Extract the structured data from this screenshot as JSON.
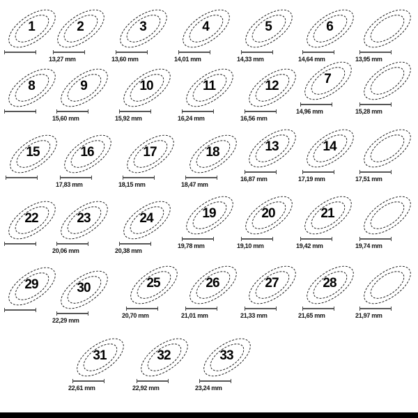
{
  "items": [
    {
      "label": "1",
      "length": ""
    },
    {
      "label": "2",
      "length": "13,27 mm"
    },
    {
      "label": "3",
      "length": "13,60 mm"
    },
    {
      "label": "4",
      "length": "14,01 mm"
    },
    {
      "label": "5",
      "length": "14,33 mm"
    },
    {
      "label": "6",
      "length": "14,64 mm"
    },
    {
      "label": "",
      "length": "13,95 mm"
    },
    {
      "label": "8",
      "length": ""
    },
    {
      "label": "9",
      "length": "15,60 mm"
    },
    {
      "label": "10",
      "length": "15,92 mm"
    },
    {
      "label": "11",
      "length": "16,24 mm"
    },
    {
      "label": "12",
      "length": "16,56 mm"
    },
    {
      "label": "7",
      "length": "14,96 mm"
    },
    {
      "label": "",
      "length": "15,28 mm"
    },
    {
      "label": "15",
      "length": ""
    },
    {
      "label": "16",
      "length": "17,83 mm"
    },
    {
      "label": "17",
      "length": "18,15 mm"
    },
    {
      "label": "18",
      "length": "18,47 mm"
    },
    {
      "label": "13",
      "length": "16,87 mm"
    },
    {
      "label": "14",
      "length": "17,19 mm"
    },
    {
      "label": "",
      "length": "17,51 mm"
    },
    {
      "label": "22",
      "length": ""
    },
    {
      "label": "23",
      "length": "20,06 mm"
    },
    {
      "label": "24",
      "length": "20,38 mm"
    },
    {
      "label": "19",
      "length": "19,78 mm"
    },
    {
      "label": "20",
      "length": "19,10 mm"
    },
    {
      "label": "21",
      "length": "19,42 mm"
    },
    {
      "label": "",
      "length": "19,74 mm"
    },
    {
      "label": "29",
      "length": ""
    },
    {
      "label": "30",
      "length": "22,29 mm"
    },
    {
      "label": "25",
      "length": "20,70 mm"
    },
    {
      "label": "26",
      "length": "21,01 mm"
    },
    {
      "label": "27",
      "length": "21,33 mm"
    },
    {
      "label": "28",
      "length": "21,65 mm"
    },
    {
      "label": "",
      "length": "21,97 mm"
    },
    {
      "label": "31",
      "length": "22,61 mm"
    },
    {
      "label": "32",
      "length": "22,92 mm"
    },
    {
      "label": "33",
      "length": "23,24 mm"
    }
  ]
}
